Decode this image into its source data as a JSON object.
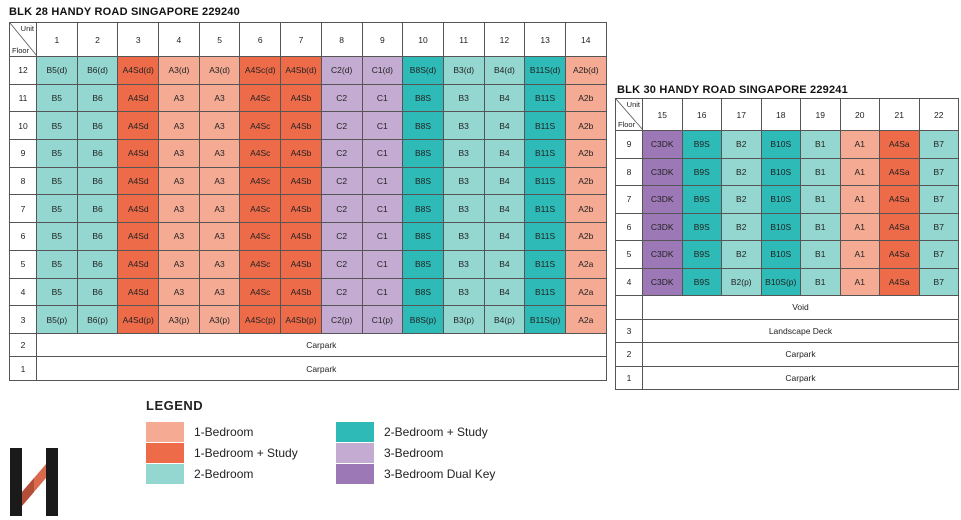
{
  "blk28": {
    "title": "BLK 28 HANDY ROAD SINGAPORE 229240",
    "corner_unit": "Unit",
    "corner_floor": "Floor",
    "units": [
      "1",
      "2",
      "3",
      "4",
      "5",
      "6",
      "7",
      "8",
      "9",
      "10",
      "11",
      "12",
      "13",
      "14"
    ],
    "colors": [
      "t2b",
      "t2b",
      "t1bs",
      "t1b",
      "t1b",
      "t1bs",
      "t1bs",
      "t3b",
      "t3b",
      "t2bs",
      "t2b",
      "t2b",
      "t2bs",
      "t1b"
    ],
    "rows": [
      {
        "floor": "12",
        "cells": [
          "B5(d)",
          "B6(d)",
          "A4Sd(d)",
          "A3(d)",
          "A3(d)",
          "A4Sc(d)",
          "A4Sb(d)",
          "C2(d)",
          "C1(d)",
          "B8S(d)",
          "B3(d)",
          "B4(d)",
          "B11S(d)",
          "A2b(d)"
        ]
      },
      {
        "floor": "11",
        "cells": [
          "B5",
          "B6",
          "A4Sd",
          "A3",
          "A3",
          "A4Sc",
          "A4Sb",
          "C2",
          "C1",
          "B8S",
          "B3",
          "B4",
          "B11S",
          "A2b"
        ]
      },
      {
        "floor": "10",
        "cells": [
          "B5",
          "B6",
          "A4Sd",
          "A3",
          "A3",
          "A4Sc",
          "A4Sb",
          "C2",
          "C1",
          "B8S",
          "B3",
          "B4",
          "B11S",
          "A2b"
        ]
      },
      {
        "floor": "9",
        "cells": [
          "B5",
          "B6",
          "A4Sd",
          "A3",
          "A3",
          "A4Sc",
          "A4Sb",
          "C2",
          "C1",
          "B8S",
          "B3",
          "B4",
          "B11S",
          "A2b"
        ]
      },
      {
        "floor": "8",
        "cells": [
          "B5",
          "B6",
          "A4Sd",
          "A3",
          "A3",
          "A4Sc",
          "A4Sb",
          "C2",
          "C1",
          "B8S",
          "B3",
          "B4",
          "B11S",
          "A2b"
        ]
      },
      {
        "floor": "7",
        "cells": [
          "B5",
          "B6",
          "A4Sd",
          "A3",
          "A3",
          "A4Sc",
          "A4Sb",
          "C2",
          "C1",
          "B8S",
          "B3",
          "B4",
          "B11S",
          "A2b"
        ]
      },
      {
        "floor": "6",
        "cells": [
          "B5",
          "B6",
          "A4Sd",
          "A3",
          "A3",
          "A4Sc",
          "A4Sb",
          "C2",
          "C1",
          "B8S",
          "B3",
          "B4",
          "B11S",
          "A2b"
        ]
      },
      {
        "floor": "5",
        "cells": [
          "B5",
          "B6",
          "A4Sd",
          "A3",
          "A3",
          "A4Sc",
          "A4Sb",
          "C2",
          "C1",
          "B8S",
          "B3",
          "B4",
          "B11S",
          "A2a"
        ]
      },
      {
        "floor": "4",
        "cells": [
          "B5",
          "B6",
          "A4Sd",
          "A3",
          "A3",
          "A4Sc",
          "A4Sb",
          "C2",
          "C1",
          "B8S",
          "B3",
          "B4",
          "B11S",
          "A2a"
        ]
      },
      {
        "floor": "3",
        "cells": [
          "B5(p)",
          "B6(p)",
          "A4Sd(p)",
          "A3(p)",
          "A3(p)",
          "A4Sc(p)",
          "A4Sb(p)",
          "C2(p)",
          "C1(p)",
          "B8S(p)",
          "B3(p)",
          "B4(p)",
          "B11S(p)",
          "A2a"
        ]
      }
    ],
    "span_rows": [
      {
        "floor": "2",
        "label": "Carpark"
      },
      {
        "floor": "1",
        "label": "Carpark"
      }
    ]
  },
  "blk30": {
    "title": "BLK 30 HANDY ROAD SINGAPORE 229241",
    "corner_unit": "Unit",
    "corner_floor": "Floor",
    "units": [
      "15",
      "16",
      "17",
      "18",
      "19",
      "20",
      "21",
      "22"
    ],
    "colors": [
      "t3dk",
      "t2bs",
      "t2b",
      "t2bs",
      "t2b",
      "t1b",
      "t1bs",
      "t2b"
    ],
    "rows": [
      {
        "floor": "9",
        "cells": [
          "C3DK",
          "B9S",
          "B2",
          "B10S",
          "B1",
          "A1",
          "A4Sa",
          "B7"
        ]
      },
      {
        "floor": "8",
        "cells": [
          "C3DK",
          "B9S",
          "B2",
          "B10S",
          "B1",
          "A1",
          "A4Sa",
          "B7"
        ]
      },
      {
        "floor": "7",
        "cells": [
          "C3DK",
          "B9S",
          "B2",
          "B10S",
          "B1",
          "A1",
          "A4Sa",
          "B7"
        ]
      },
      {
        "floor": "6",
        "cells": [
          "C3DK",
          "B9S",
          "B2",
          "B10S",
          "B1",
          "A1",
          "A4Sa",
          "B7"
        ]
      },
      {
        "floor": "5",
        "cells": [
          "C3DK",
          "B9S",
          "B2",
          "B10S",
          "B1",
          "A1",
          "A4Sa",
          "B7"
        ]
      },
      {
        "floor": "4",
        "cells": [
          "C3DK",
          "B9S",
          "B2(p)",
          "B10S(p)",
          "B1",
          "A1",
          "A4Sa",
          "B7"
        ]
      }
    ],
    "span_rows": [
      {
        "floor": "",
        "label": "Void"
      },
      {
        "floor": "3",
        "label": "Landscape Deck"
      },
      {
        "floor": "2",
        "label": "Carpark"
      },
      {
        "floor": "1",
        "label": "Carpark"
      }
    ]
  },
  "legend": {
    "title": "LEGEND",
    "items": [
      {
        "label": "1-Bedroom",
        "color": "#F5AA93"
      },
      {
        "label": "1-Bedroom + Study",
        "color": "#EE6B49"
      },
      {
        "label": "2-Bedroom",
        "color": "#93D7D0"
      },
      {
        "label": "2-Bedroom + Study",
        "color": "#2EBBB7"
      },
      {
        "label": "3-Bedroom",
        "color": "#C4ABD2"
      },
      {
        "label": "3-Bedroom Dual Key",
        "color": "#9D78B6"
      }
    ]
  },
  "logo": {
    "icon": "h-logo-icon"
  }
}
